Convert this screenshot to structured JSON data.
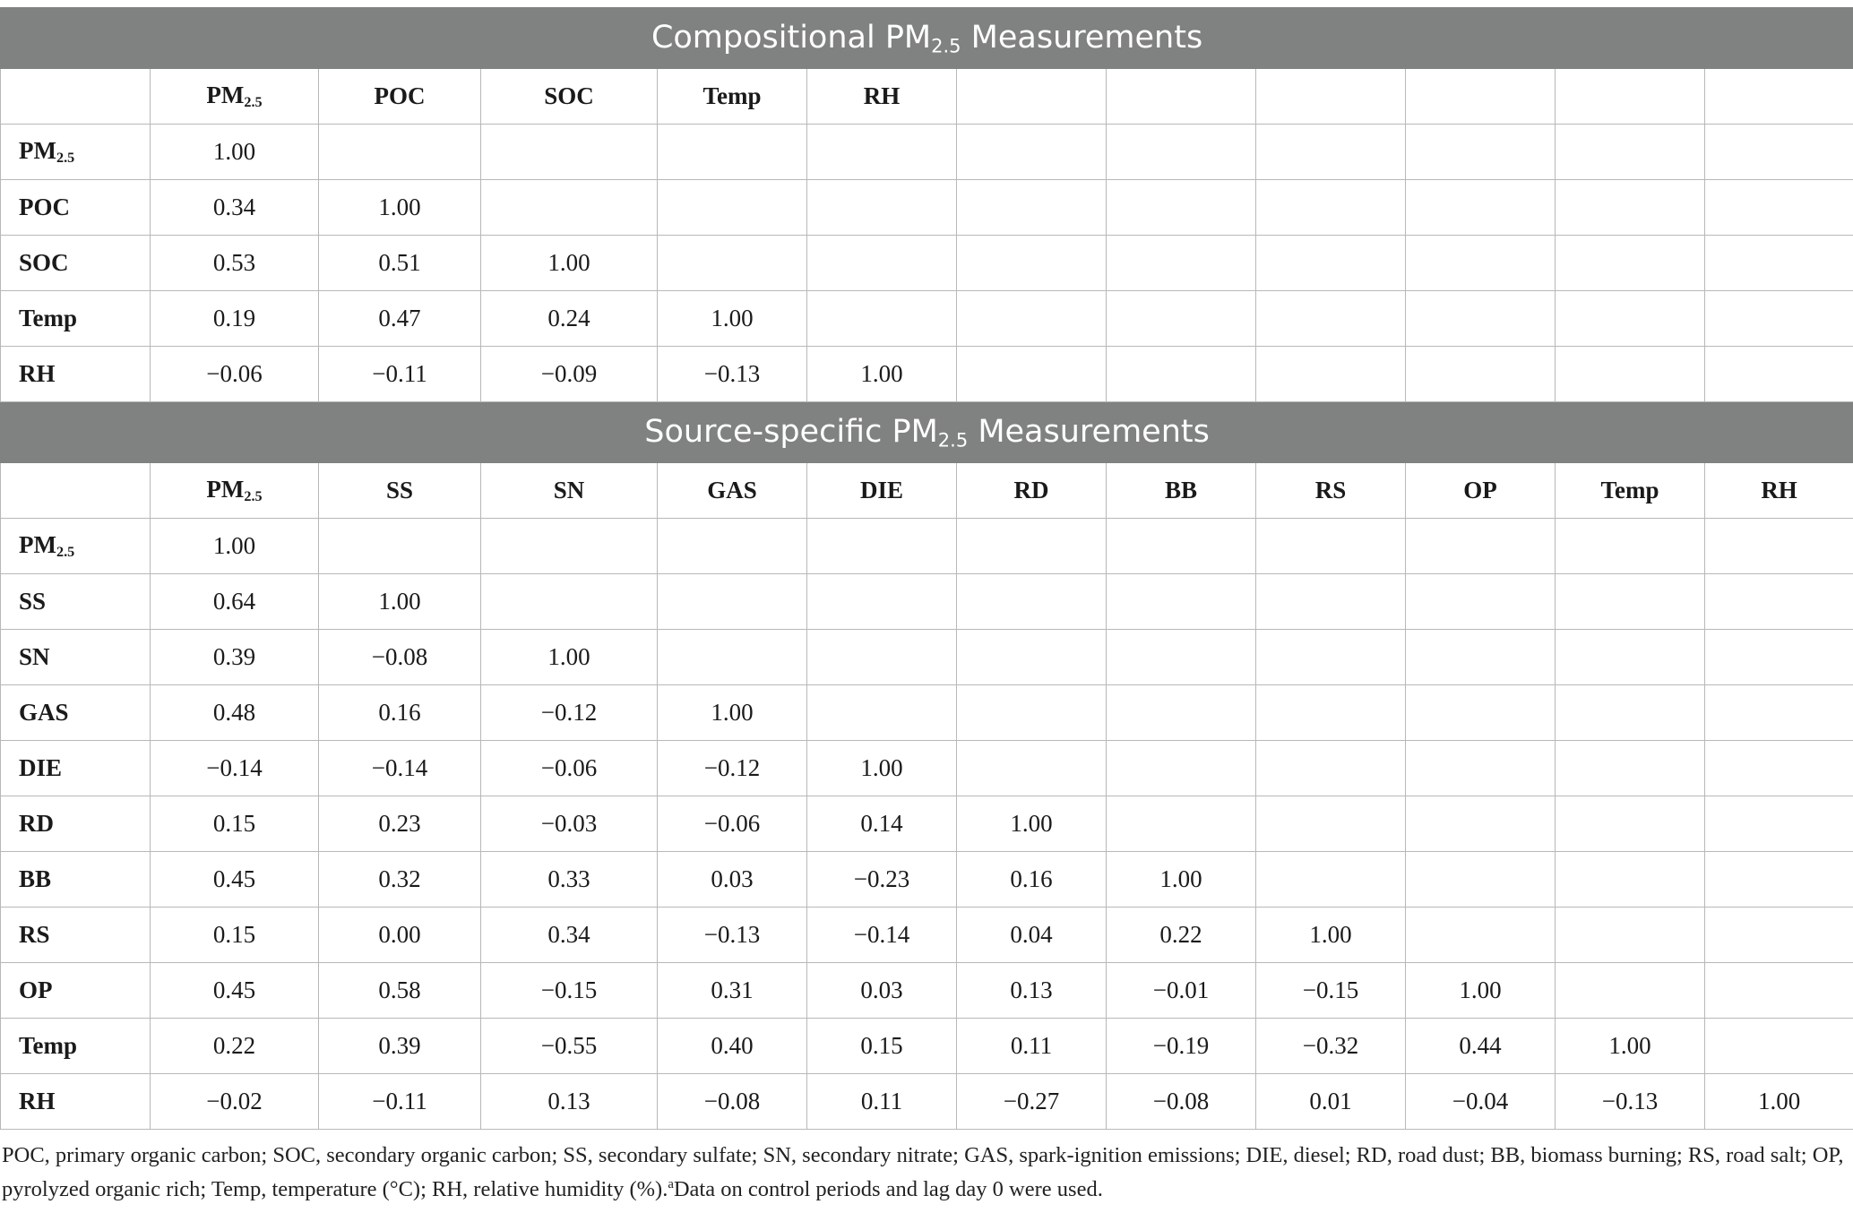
{
  "sections": [
    {
      "title_prefix": "Compositional PM",
      "title_sub": "2.5",
      "title_suffix": " Measurements",
      "col_headers": [
        {
          "base": "PM",
          "sub": "2.5"
        },
        {
          "base": "POC",
          "sub": ""
        },
        {
          "base": "SOC",
          "sub": ""
        },
        {
          "base": "Temp",
          "sub": ""
        },
        {
          "base": "RH",
          "sub": ""
        },
        {
          "base": "",
          "sub": ""
        },
        {
          "base": "",
          "sub": ""
        },
        {
          "base": "",
          "sub": ""
        },
        {
          "base": "",
          "sub": ""
        },
        {
          "base": "",
          "sub": ""
        },
        {
          "base": "",
          "sub": ""
        }
      ],
      "rows": [
        {
          "label": {
            "base": "PM",
            "sub": "2.5"
          },
          "values": [
            "1.00"
          ]
        },
        {
          "label": {
            "base": "POC",
            "sub": ""
          },
          "values": [
            "0.34",
            "1.00"
          ]
        },
        {
          "label": {
            "base": "SOC",
            "sub": ""
          },
          "values": [
            "0.53",
            "0.51",
            "1.00"
          ]
        },
        {
          "label": {
            "base": "Temp",
            "sub": ""
          },
          "values": [
            "0.19",
            "0.47",
            "0.24",
            "1.00"
          ]
        },
        {
          "label": {
            "base": "RH",
            "sub": ""
          },
          "values": [
            "−0.06",
            "−0.11",
            "−0.09",
            "−0.13",
            "1.00"
          ]
        }
      ]
    },
    {
      "title_prefix": "Source-specific PM",
      "title_sub": "2.5",
      "title_suffix": " Measurements",
      "col_headers": [
        {
          "base": "PM",
          "sub": "2.5"
        },
        {
          "base": "SS",
          "sub": ""
        },
        {
          "base": "SN",
          "sub": ""
        },
        {
          "base": "GAS",
          "sub": ""
        },
        {
          "base": "DIE",
          "sub": ""
        },
        {
          "base": "RD",
          "sub": ""
        },
        {
          "base": "BB",
          "sub": ""
        },
        {
          "base": "RS",
          "sub": ""
        },
        {
          "base": "OP",
          "sub": ""
        },
        {
          "base": "Temp",
          "sub": ""
        },
        {
          "base": "RH",
          "sub": ""
        }
      ],
      "rows": [
        {
          "label": {
            "base": "PM",
            "sub": "2.5"
          },
          "values": [
            "1.00"
          ]
        },
        {
          "label": {
            "base": "SS",
            "sub": ""
          },
          "values": [
            "0.64",
            "1.00"
          ]
        },
        {
          "label": {
            "base": "SN",
            "sub": ""
          },
          "values": [
            "0.39",
            "−0.08",
            "1.00"
          ]
        },
        {
          "label": {
            "base": "GAS",
            "sub": ""
          },
          "values": [
            "0.48",
            "0.16",
            "−0.12",
            "1.00"
          ]
        },
        {
          "label": {
            "base": "DIE",
            "sub": ""
          },
          "values": [
            "−0.14",
            "−0.14",
            "−0.06",
            "−0.12",
            "1.00"
          ]
        },
        {
          "label": {
            "base": "RD",
            "sub": ""
          },
          "values": [
            "0.15",
            "0.23",
            "−0.03",
            "−0.06",
            "0.14",
            "1.00"
          ]
        },
        {
          "label": {
            "base": "BB",
            "sub": ""
          },
          "values": [
            "0.45",
            "0.32",
            "0.33",
            "0.03",
            "−0.23",
            "0.16",
            "1.00"
          ]
        },
        {
          "label": {
            "base": "RS",
            "sub": ""
          },
          "values": [
            "0.15",
            "0.00",
            "0.34",
            "−0.13",
            "−0.14",
            "0.04",
            "0.22",
            "1.00"
          ]
        },
        {
          "label": {
            "base": "OP",
            "sub": ""
          },
          "values": [
            "0.45",
            "0.58",
            "−0.15",
            "0.31",
            "0.03",
            "0.13",
            "−0.01",
            "−0.15",
            "1.00"
          ]
        },
        {
          "label": {
            "base": "Temp",
            "sub": ""
          },
          "values": [
            "0.22",
            "0.39",
            "−0.55",
            "0.40",
            "0.15",
            "0.11",
            "−0.19",
            "−0.32",
            "0.44",
            "1.00"
          ]
        },
        {
          "label": {
            "base": "RH",
            "sub": ""
          },
          "values": [
            "−0.02",
            "−0.11",
            "0.13",
            "−0.08",
            "0.11",
            "−0.27",
            "−0.08",
            "0.01",
            "−0.04",
            "−0.13",
            "1.00"
          ]
        }
      ]
    }
  ],
  "footnote": {
    "text": "POC, primary organic carbon; SOC, secondary organic carbon; SS, secondary sulfate; SN, secondary nitrate; GAS, spark-ignition emissions; DIE, diesel; RD, road dust; BB, biomass burning; RS, road salt; OP, pyrolyzed organic rich; Temp, temperature (°C); RH, relative humidity (%).",
    "marker": "a",
    "marker_text": "Data on control periods and lag day 0 were used."
  },
  "colors": {
    "section_header_bg": "#7f8280",
    "grid": "#b8b8b8",
    "text": "#1a1a1a"
  }
}
